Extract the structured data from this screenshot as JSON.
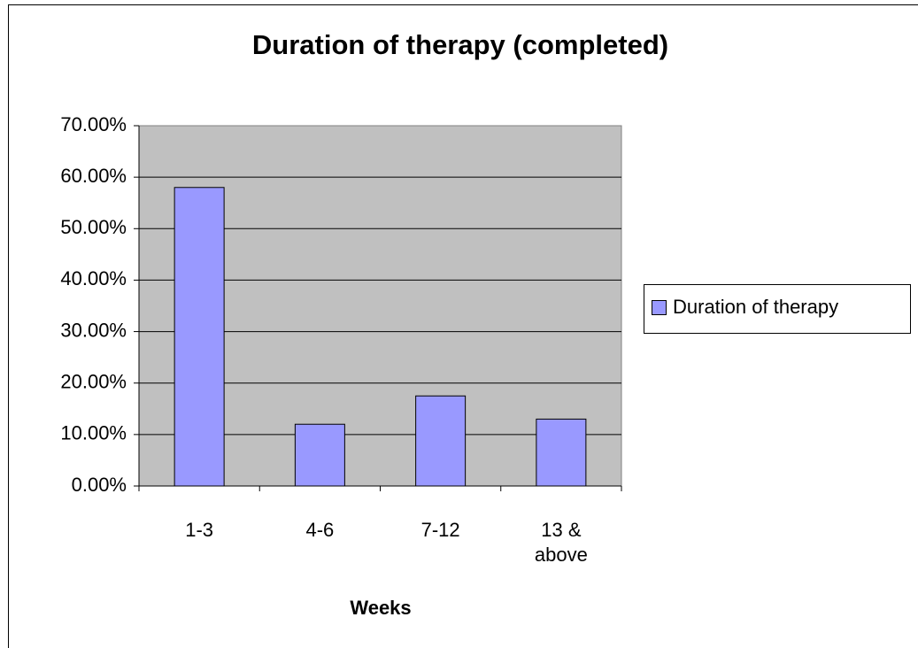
{
  "chart_data": {
    "type": "bar",
    "title": "Duration of therapy (completed)",
    "x_label": "Weeks",
    "categories": [
      "1-3",
      "4-6",
      "7-12",
      "13 & above"
    ],
    "series": [
      {
        "name": "Duration of therapy",
        "color": "#9999ff",
        "values": [
          58,
          12,
          17.5,
          13
        ]
      }
    ],
    "ylim": [
      0,
      70
    ],
    "yticks": [
      {
        "value": 0,
        "label": "0.00%"
      },
      {
        "value": 10,
        "label": "10.00%"
      },
      {
        "value": 20,
        "label": "20.00%"
      },
      {
        "value": 30,
        "label": "30.00%"
      },
      {
        "value": 40,
        "label": "40.00%"
      },
      {
        "value": 50,
        "label": "50.00%"
      },
      {
        "value": 60,
        "label": "60.00%"
      },
      {
        "value": 70,
        "label": "70.00%"
      }
    ],
    "grid": true,
    "legend": "right"
  }
}
